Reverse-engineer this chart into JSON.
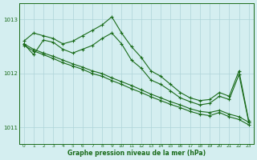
{
  "title": "Graphe pression niveau de la mer (hPa)",
  "bg_color": "#d4eef0",
  "grid_color": "#aed4d8",
  "line_color": "#1a6b1a",
  "ylim": [
    1010.7,
    1013.3
  ],
  "yticks": [
    1011,
    1012,
    1013
  ],
  "xlim": [
    -0.5,
    23.5
  ],
  "xticks": [
    0,
    1,
    2,
    3,
    4,
    5,
    6,
    7,
    8,
    9,
    10,
    11,
    12,
    13,
    14,
    15,
    16,
    17,
    18,
    19,
    20,
    21,
    22,
    23
  ],
  "series": [
    {
      "x": [
        0,
        1,
        2,
        3,
        4,
        5,
        6,
        7,
        8,
        9,
        10,
        11,
        12,
        13,
        14,
        15,
        16,
        17,
        18,
        19,
        20,
        21,
        22,
        23
      ],
      "y": [
        1012.6,
        1012.75,
        1012.7,
        1012.65,
        1012.55,
        1012.6,
        1012.7,
        1012.8,
        1012.9,
        1013.05,
        1012.75,
        1012.5,
        1012.3,
        1012.05,
        1011.95,
        1011.8,
        1011.65,
        1011.55,
        1011.5,
        1011.52,
        1011.65,
        1011.58,
        1012.05,
        1011.12
      ]
    },
    {
      "x": [
        0,
        1,
        2,
        3,
        4,
        5,
        6,
        7,
        8,
        9,
        10,
        11,
        12,
        13,
        14,
        15,
        16,
        17,
        18,
        19,
        20,
        21,
        22,
        23
      ],
      "y": [
        1012.55,
        1012.35,
        1012.62,
        1012.58,
        1012.45,
        1012.38,
        1012.45,
        1012.52,
        1012.65,
        1012.75,
        1012.55,
        1012.25,
        1012.1,
        1011.88,
        1011.8,
        1011.68,
        1011.55,
        1011.48,
        1011.42,
        1011.45,
        1011.58,
        1011.52,
        1011.98,
        1011.1
      ]
    },
    {
      "x": [
        0,
        1,
        2,
        3,
        4,
        5,
        6,
        7,
        8,
        9,
        10,
        11,
        12,
        13,
        14,
        15,
        16,
        17,
        18,
        19,
        20,
        21,
        22,
        23
      ],
      "y": [
        1012.55,
        1012.45,
        1012.38,
        1012.32,
        1012.25,
        1012.18,
        1012.12,
        1012.05,
        1012.0,
        1011.92,
        1011.85,
        1011.78,
        1011.7,
        1011.62,
        1011.55,
        1011.48,
        1011.42,
        1011.35,
        1011.3,
        1011.28,
        1011.32,
        1011.25,
        1011.2,
        1011.1
      ]
    },
    {
      "x": [
        0,
        1,
        2,
        3,
        4,
        5,
        6,
        7,
        8,
        9,
        10,
        11,
        12,
        13,
        14,
        15,
        16,
        17,
        18,
        19,
        20,
        21,
        22,
        23
      ],
      "y": [
        1012.52,
        1012.42,
        1012.35,
        1012.28,
        1012.2,
        1012.14,
        1012.08,
        1012.0,
        1011.95,
        1011.87,
        1011.8,
        1011.72,
        1011.65,
        1011.57,
        1011.5,
        1011.43,
        1011.37,
        1011.3,
        1011.25,
        1011.22,
        1011.28,
        1011.2,
        1011.15,
        1011.05
      ]
    }
  ]
}
